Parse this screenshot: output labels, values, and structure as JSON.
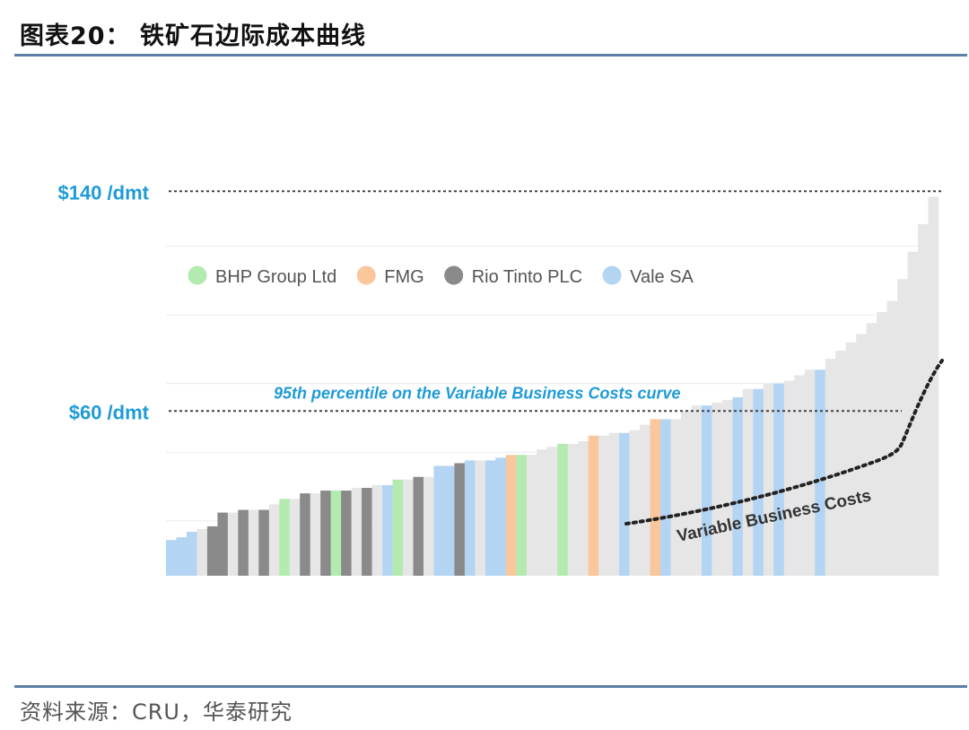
{
  "header": {
    "title": "图表20：  铁矿石边际成本曲线"
  },
  "footer": {
    "source": "资料来源：CRU，华泰研究"
  },
  "colors": {
    "bhp": "#b3eab0",
    "fmg": "#f9c79b",
    "rio": "#8a8a8a",
    "vale": "#b3d4f2",
    "other": "#e6e6e6",
    "accent": "#1e9bd7"
  },
  "chart_data": {
    "type": "bar",
    "subtype": "cost curve (variable-width bars)",
    "y_reference_lines": [
      {
        "label": "$140 /dmt",
        "value": 140
      },
      {
        "label": "$60 /dmt",
        "value": 60
      }
    ],
    "ylim": [
      0,
      140
    ],
    "grid": true,
    "legend": [
      {
        "key": "bhp",
        "label": "BHP Group Ltd"
      },
      {
        "key": "fmg",
        "label": "FMG"
      },
      {
        "key": "rio",
        "label": "Rio Tinto PLC"
      },
      {
        "key": "vale",
        "label": "Vale SA"
      }
    ],
    "legend_position": "top-left",
    "annotation_95th": "95th percentile on the Variable Business Costs curve",
    "variable_costs_label": "Variable Business Costs",
    "bars": [
      {
        "owner": "vale",
        "cost": 13
      },
      {
        "owner": "vale",
        "cost": 14
      },
      {
        "owner": "vale",
        "cost": 16
      },
      {
        "owner": "other",
        "cost": 17
      },
      {
        "owner": "rio",
        "cost": 18
      },
      {
        "owner": "rio",
        "cost": 23
      },
      {
        "owner": "other",
        "cost": 23
      },
      {
        "owner": "rio",
        "cost": 24
      },
      {
        "owner": "other",
        "cost": 24
      },
      {
        "owner": "rio",
        "cost": 24
      },
      {
        "owner": "other",
        "cost": 26
      },
      {
        "owner": "bhp",
        "cost": 28
      },
      {
        "owner": "other",
        "cost": 28
      },
      {
        "owner": "rio",
        "cost": 30
      },
      {
        "owner": "other",
        "cost": 30
      },
      {
        "owner": "rio",
        "cost": 31
      },
      {
        "owner": "bhp",
        "cost": 31
      },
      {
        "owner": "rio",
        "cost": 31
      },
      {
        "owner": "other",
        "cost": 32
      },
      {
        "owner": "rio",
        "cost": 32
      },
      {
        "owner": "other",
        "cost": 33
      },
      {
        "owner": "vale",
        "cost": 33
      },
      {
        "owner": "bhp",
        "cost": 35
      },
      {
        "owner": "other",
        "cost": 35
      },
      {
        "owner": "rio",
        "cost": 36
      },
      {
        "owner": "other",
        "cost": 36
      },
      {
        "owner": "vale",
        "cost": 40
      },
      {
        "owner": "vale",
        "cost": 40
      },
      {
        "owner": "rio",
        "cost": 41
      },
      {
        "owner": "vale",
        "cost": 42
      },
      {
        "owner": "other",
        "cost": 42
      },
      {
        "owner": "vale",
        "cost": 42
      },
      {
        "owner": "vale",
        "cost": 43
      },
      {
        "owner": "fmg",
        "cost": 44
      },
      {
        "owner": "bhp",
        "cost": 44
      },
      {
        "owner": "other",
        "cost": 44
      },
      {
        "owner": "other",
        "cost": 46
      },
      {
        "owner": "other",
        "cost": 47
      },
      {
        "owner": "bhp",
        "cost": 48
      },
      {
        "owner": "other",
        "cost": 48
      },
      {
        "owner": "other",
        "cost": 49
      },
      {
        "owner": "fmg",
        "cost": 51
      },
      {
        "owner": "other",
        "cost": 51
      },
      {
        "owner": "other",
        "cost": 52
      },
      {
        "owner": "vale",
        "cost": 52
      },
      {
        "owner": "other",
        "cost": 53
      },
      {
        "owner": "other",
        "cost": 55
      },
      {
        "owner": "fmg",
        "cost": 57
      },
      {
        "owner": "vale",
        "cost": 57
      },
      {
        "owner": "other",
        "cost": 57
      },
      {
        "owner": "other",
        "cost": 60
      },
      {
        "owner": "other",
        "cost": 62
      },
      {
        "owner": "vale",
        "cost": 62
      },
      {
        "owner": "other",
        "cost": 63
      },
      {
        "owner": "other",
        "cost": 64
      },
      {
        "owner": "vale",
        "cost": 65
      },
      {
        "owner": "other",
        "cost": 68
      },
      {
        "owner": "vale",
        "cost": 68
      },
      {
        "owner": "other",
        "cost": 70
      },
      {
        "owner": "vale",
        "cost": 70
      },
      {
        "owner": "other",
        "cost": 71
      },
      {
        "owner": "other",
        "cost": 73
      },
      {
        "owner": "other",
        "cost": 75
      },
      {
        "owner": "vale",
        "cost": 75
      },
      {
        "owner": "other",
        "cost": 79
      },
      {
        "owner": "other",
        "cost": 82
      },
      {
        "owner": "other",
        "cost": 85
      },
      {
        "owner": "other",
        "cost": 88
      },
      {
        "owner": "other",
        "cost": 92
      },
      {
        "owner": "other",
        "cost": 96
      },
      {
        "owner": "other",
        "cost": 100
      },
      {
        "owner": "other",
        "cost": 108
      },
      {
        "owner": "other",
        "cost": 118
      },
      {
        "owner": "other",
        "cost": 128
      },
      {
        "owner": "other",
        "cost": 138
      }
    ]
  }
}
